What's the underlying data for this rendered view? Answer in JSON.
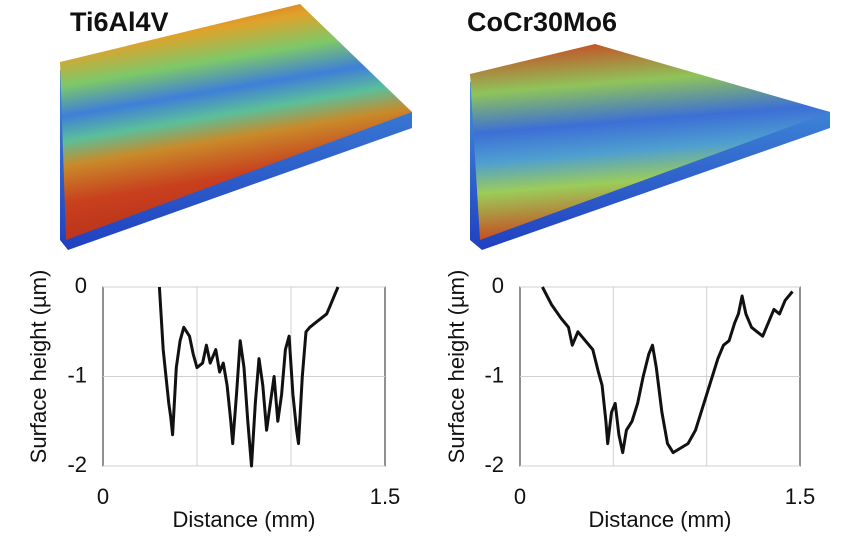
{
  "chart_data": [
    {
      "type": "line",
      "title": "Ti6Al4V",
      "x_label": "Distance (mm)",
      "y_label": "Surface height (µm)",
      "xlim": [
        0,
        1.5
      ],
      "xticks": [
        0,
        1.5
      ],
      "x_grid_lines": [
        0.5,
        1.0
      ],
      "ylim": [
        -2,
        0
      ],
      "yticks": [
        0,
        -1,
        -2
      ],
      "grid": true,
      "series": [
        {
          "color": "#111111",
          "x": [
            0.3,
            0.32,
            0.34,
            0.35,
            0.36,
            0.37,
            0.39,
            0.41,
            0.43,
            0.46,
            0.48,
            0.5,
            0.53,
            0.55,
            0.57,
            0.6,
            0.62,
            0.64,
            0.66,
            0.68,
            0.69,
            0.71,
            0.73,
            0.75,
            0.77,
            0.79,
            0.81,
            0.83,
            0.85,
            0.87,
            0.89,
            0.91,
            0.93,
            0.95,
            0.97,
            0.99,
            1.01,
            1.03,
            1.04,
            1.06,
            1.08,
            1.1,
            1.13,
            1.16,
            1.19,
            1.21,
            1.23,
            1.25
          ],
          "values": [
            0,
            -0.7,
            -1.1,
            -1.3,
            -1.45,
            -1.65,
            -0.9,
            -0.6,
            -0.45,
            -0.55,
            -0.75,
            -0.9,
            -0.85,
            -0.65,
            -0.85,
            -0.7,
            -0.95,
            -0.85,
            -1.1,
            -1.5,
            -1.75,
            -1.2,
            -0.6,
            -0.9,
            -1.5,
            -2.0,
            -1.3,
            -0.8,
            -1.1,
            -1.6,
            -1.3,
            -1.0,
            -1.5,
            -1.2,
            -0.7,
            -0.55,
            -1.2,
            -1.6,
            -1.75,
            -1.0,
            -0.5,
            -0.45,
            -0.4,
            -0.35,
            -0.3,
            -0.2,
            -0.1,
            0
          ]
        }
      ]
    },
    {
      "type": "line",
      "title": "CoCr30Mo6",
      "x_label": "Distance (mm)",
      "y_label": "Surface height (µm)",
      "xlim": [
        0,
        1.5
      ],
      "xticks": [
        0,
        1.5
      ],
      "x_grid_lines": [
        0.5,
        1.0
      ],
      "ylim": [
        -2,
        0
      ],
      "yticks": [
        0,
        -1,
        -2
      ],
      "grid": true,
      "series": [
        {
          "color": "#111111",
          "x": [
            0.12,
            0.17,
            0.22,
            0.26,
            0.28,
            0.31,
            0.35,
            0.39,
            0.42,
            0.44,
            0.46,
            0.47,
            0.49,
            0.51,
            0.53,
            0.55,
            0.57,
            0.6,
            0.63,
            0.66,
            0.69,
            0.71,
            0.73,
            0.76,
            0.79,
            0.82,
            0.86,
            0.9,
            0.94,
            0.97,
            1.0,
            1.03,
            1.06,
            1.09,
            1.12,
            1.15,
            1.17,
            1.19,
            1.21,
            1.24,
            1.27,
            1.3,
            1.33,
            1.36,
            1.39,
            1.42,
            1.46
          ],
          "values": [
            0,
            -0.2,
            -0.35,
            -0.45,
            -0.65,
            -0.5,
            -0.6,
            -0.7,
            -0.95,
            -1.1,
            -1.5,
            -1.75,
            -1.4,
            -1.3,
            -1.65,
            -1.85,
            -1.6,
            -1.5,
            -1.3,
            -1.0,
            -0.75,
            -0.65,
            -0.9,
            -1.4,
            -1.75,
            -1.85,
            -1.8,
            -1.75,
            -1.6,
            -1.4,
            -1.2,
            -1.0,
            -0.8,
            -0.65,
            -0.6,
            -0.4,
            -0.3,
            -0.1,
            -0.3,
            -0.45,
            -0.5,
            -0.55,
            -0.4,
            -0.25,
            -0.3,
            -0.15,
            -0.05
          ]
        }
      ]
    }
  ]
}
